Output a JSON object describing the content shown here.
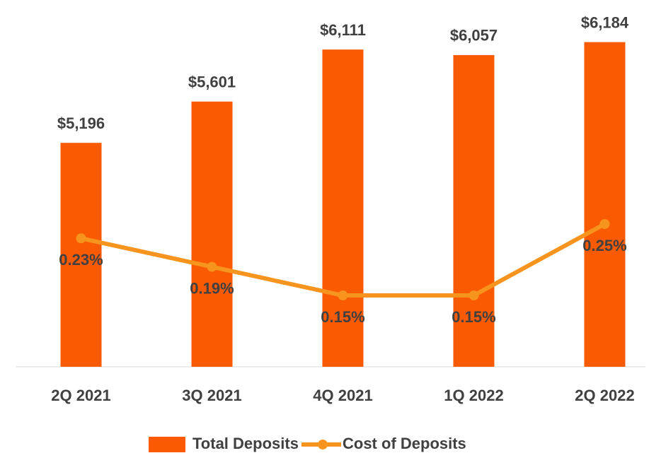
{
  "chart_data": {
    "type": "bar",
    "categories": [
      "2Q 2021",
      "3Q 2021",
      "4Q 2021",
      "1Q 2022",
      "2Q 2022"
    ],
    "series": [
      {
        "name": "Total Deposits",
        "type": "bar",
        "color": "#fa5a02",
        "values": [
          5196,
          5601,
          6111,
          6057,
          6184
        ],
        "value_labels": [
          "$5,196",
          "$5,601",
          "$6,111",
          "$6,057",
          "$6,184"
        ]
      },
      {
        "name": "Cost of Deposits",
        "type": "line",
        "axis": "y2",
        "color": "#f7941d",
        "values": [
          0.23,
          0.19,
          0.15,
          0.15,
          0.25
        ],
        "value_labels": [
          "0.23%",
          "0.19%",
          "0.15%",
          "0.15%",
          "0.25%"
        ]
      }
    ],
    "ylim": [
      3000,
      6500
    ],
    "y2lim": [
      0.05,
      0.55
    ],
    "legend": "bottom"
  }
}
